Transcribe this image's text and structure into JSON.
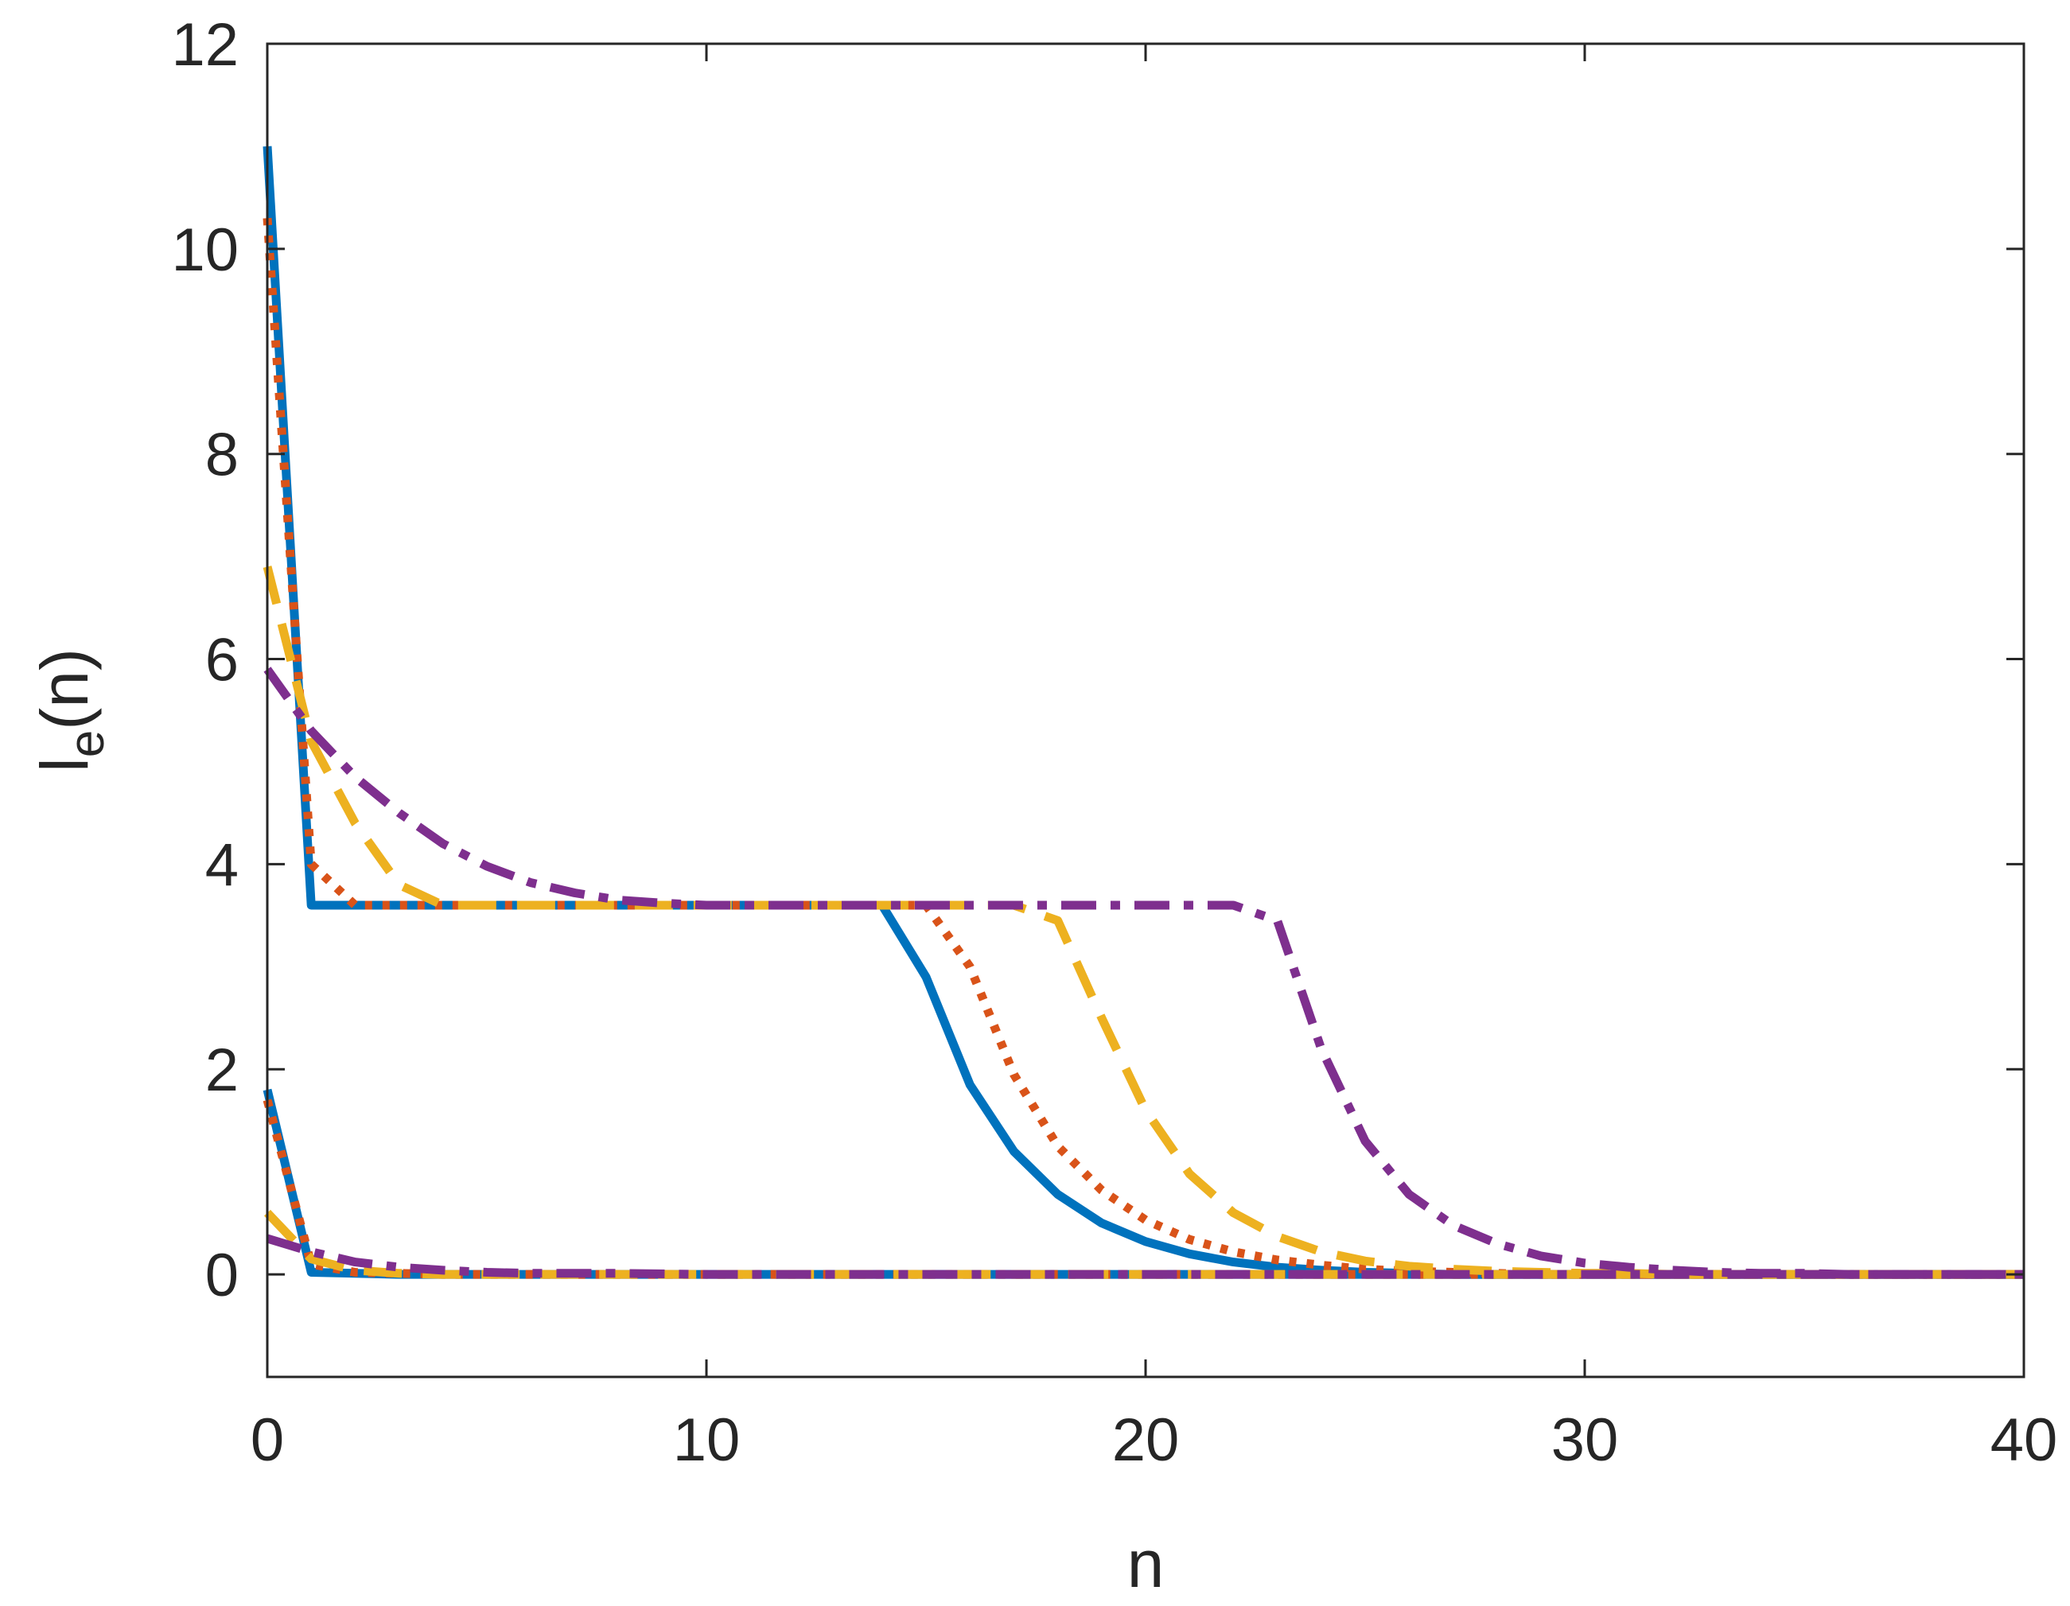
{
  "chart_data": {
    "type": "line",
    "xlabel": "n",
    "ylabel_main": "l",
    "ylabel_sub": "e",
    "ylabel_tail": "(n)",
    "xlim": [
      0,
      40
    ],
    "ylim": [
      -1,
      12
    ],
    "xticks": [
      0,
      10,
      20,
      30,
      40
    ],
    "yticks": [
      0,
      2,
      4,
      6,
      8,
      10,
      12
    ],
    "grid": false,
    "legend": "none",
    "series": [
      {
        "style": "solid",
        "color": "#0072BD",
        "x": [
          0,
          1,
          2,
          3,
          4,
          5,
          6,
          7,
          8,
          9,
          10,
          11,
          12,
          13,
          14,
          15,
          16,
          17,
          18,
          19,
          20,
          21,
          22,
          23,
          24,
          25,
          26,
          27,
          28,
          29,
          30,
          31,
          32,
          33,
          34,
          35,
          36,
          37,
          38,
          39,
          40
        ],
        "y": [
          11.0,
          3.6,
          3.6,
          3.6,
          3.6,
          3.6,
          3.6,
          3.6,
          3.6,
          3.6,
          3.6,
          3.6,
          3.6,
          3.6,
          3.6,
          2.9,
          1.85,
          1.2,
          0.78,
          0.5,
          0.32,
          0.2,
          0.12,
          0.07,
          0.04,
          0.02,
          0.01,
          0,
          0,
          0,
          0,
          0,
          0,
          0,
          0,
          0,
          0,
          0,
          0,
          0,
          0
        ]
      },
      {
        "style": "solid",
        "color": "#0072BD",
        "x": [
          0,
          1,
          2,
          3,
          4,
          5,
          10,
          15,
          20,
          25,
          30,
          35,
          40
        ],
        "y": [
          1.8,
          0.02,
          0.01,
          0,
          0,
          0,
          0,
          0,
          0,
          0,
          0,
          0,
          0
        ]
      },
      {
        "style": "dotted",
        "color": "#D95319",
        "x": [
          0,
          1,
          2,
          3,
          4,
          5,
          6,
          7,
          8,
          9,
          10,
          11,
          12,
          13,
          14,
          15,
          16,
          17,
          18,
          19,
          20,
          21,
          22,
          23,
          24,
          25,
          26,
          27,
          28,
          29,
          30,
          31,
          32,
          33,
          34,
          35,
          36,
          37,
          38,
          39,
          40
        ],
        "y": [
          10.3,
          4.0,
          3.6,
          3.6,
          3.6,
          3.6,
          3.6,
          3.6,
          3.6,
          3.6,
          3.6,
          3.6,
          3.6,
          3.6,
          3.6,
          3.6,
          3.0,
          1.95,
          1.25,
          0.82,
          0.53,
          0.34,
          0.22,
          0.14,
          0.09,
          0.05,
          0.03,
          0.02,
          0.01,
          0,
          0,
          0,
          0,
          0,
          0,
          0,
          0,
          0,
          0,
          0,
          0
        ]
      },
      {
        "style": "dotted",
        "color": "#D95319",
        "x": [
          0,
          1,
          2,
          3,
          4,
          5,
          10,
          15,
          20,
          25,
          30,
          35,
          40
        ],
        "y": [
          1.7,
          0.1,
          0.02,
          0.01,
          0,
          0,
          0,
          0,
          0,
          0,
          0,
          0,
          0
        ]
      },
      {
        "style": "dashed",
        "color": "#EDB120",
        "x": [
          0,
          1,
          2,
          3,
          4,
          5,
          6,
          7,
          8,
          9,
          10,
          11,
          12,
          13,
          14,
          15,
          16,
          17,
          18,
          19,
          20,
          21,
          22,
          23,
          24,
          25,
          26,
          27,
          28,
          29,
          30,
          31,
          32,
          33,
          34,
          35,
          36,
          37,
          38,
          39,
          40
        ],
        "y": [
          6.9,
          5.2,
          4.4,
          3.8,
          3.6,
          3.6,
          3.6,
          3.6,
          3.6,
          3.6,
          3.6,
          3.6,
          3.6,
          3.6,
          3.6,
          3.6,
          3.6,
          3.6,
          3.45,
          2.5,
          1.6,
          0.98,
          0.6,
          0.37,
          0.22,
          0.13,
          0.08,
          0.05,
          0.03,
          0.02,
          0.01,
          0.01,
          0,
          0,
          0,
          0,
          0,
          0,
          0,
          0,
          0
        ]
      },
      {
        "style": "dashed",
        "color": "#EDB120",
        "x": [
          0,
          1,
          2,
          3,
          4,
          5,
          10,
          15,
          20,
          25,
          30,
          35,
          40
        ],
        "y": [
          0.6,
          0.15,
          0.04,
          0.01,
          0,
          0,
          0,
          0,
          0,
          0,
          0,
          0,
          0
        ]
      },
      {
        "style": "dashdot",
        "color": "#7E2F8E",
        "x": [
          0,
          1,
          2,
          3,
          4,
          5,
          6,
          7,
          8,
          9,
          10,
          11,
          12,
          13,
          14,
          15,
          16,
          17,
          18,
          19,
          20,
          21,
          22,
          23,
          24,
          25,
          26,
          27,
          28,
          29,
          30,
          31,
          32,
          33,
          34,
          35,
          36,
          37,
          38,
          39,
          40
        ],
        "y": [
          5.9,
          5.3,
          4.85,
          4.5,
          4.2,
          3.98,
          3.82,
          3.72,
          3.65,
          3.62,
          3.6,
          3.6,
          3.6,
          3.6,
          3.6,
          3.6,
          3.6,
          3.6,
          3.6,
          3.6,
          3.6,
          3.6,
          3.6,
          3.45,
          2.2,
          1.3,
          0.78,
          0.48,
          0.3,
          0.18,
          0.11,
          0.07,
          0.04,
          0.02,
          0.01,
          0.01,
          0,
          0,
          0,
          0,
          0
        ]
      },
      {
        "style": "dashdot",
        "color": "#7E2F8E",
        "x": [
          0,
          1,
          2,
          3,
          4,
          5,
          6,
          8,
          10,
          15,
          20,
          25,
          30,
          35,
          40
        ],
        "y": [
          0.35,
          0.22,
          0.12,
          0.07,
          0.04,
          0.02,
          0.01,
          0.01,
          0,
          0,
          0,
          0,
          0,
          0,
          0
        ]
      }
    ]
  }
}
